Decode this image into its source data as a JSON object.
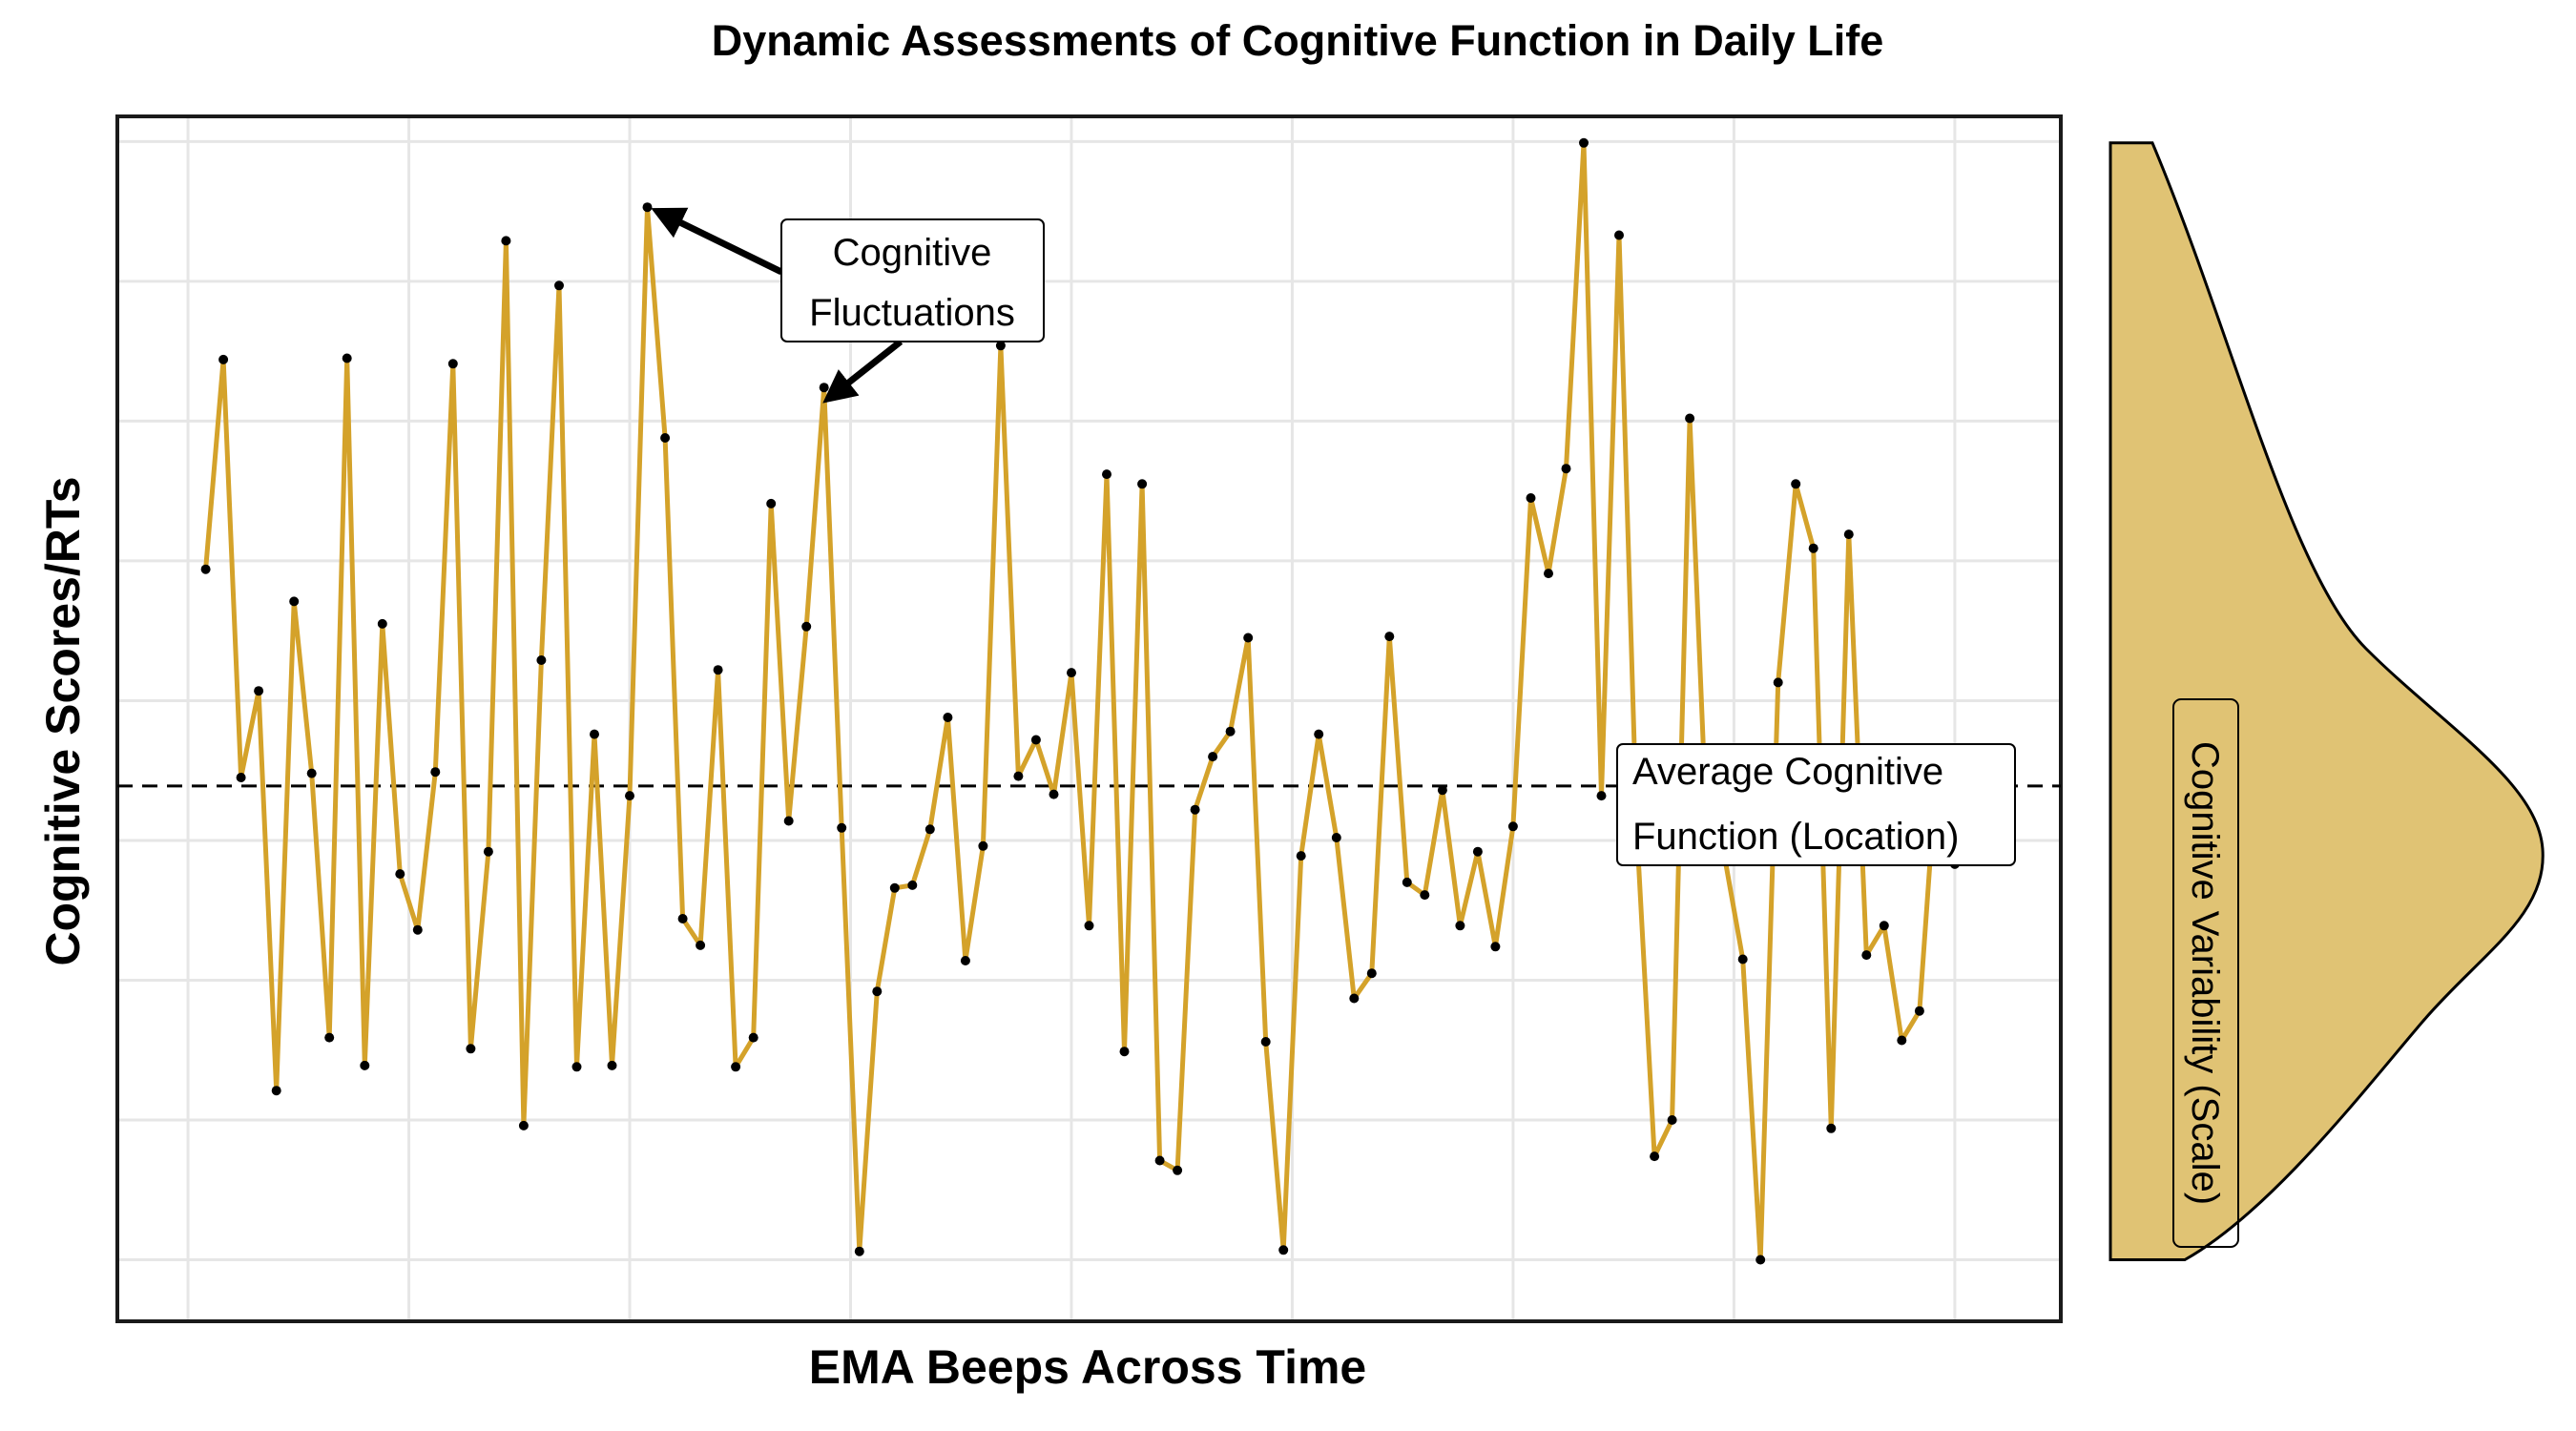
{
  "chart_data": {
    "type": "line",
    "title": "Dynamic Assessments of Cognitive Function in Daily Life",
    "xlabel": "EMA Beeps Across Time",
    "ylabel": "Cognitive Scores/RTs",
    "x_tick_labels_shown": false,
    "y_tick_labels_shown": false,
    "grid": true,
    "xlim": [
      -4,
      106
    ],
    "ylim": [
      -4.4,
      81.8
    ],
    "series": [
      {
        "color": "#D4A22A",
        "marker_color": "#000000",
        "x": [
          1,
          2,
          3,
          4,
          5,
          6,
          7,
          8,
          9,
          10,
          11,
          12,
          13,
          14,
          15,
          16,
          17,
          18,
          19,
          20,
          21,
          22,
          23,
          24,
          25,
          26,
          27,
          28,
          29,
          30,
          31,
          32,
          33,
          34,
          35,
          36,
          37,
          38,
          39,
          40,
          41,
          42,
          43,
          44,
          45,
          46,
          47,
          48,
          49,
          50,
          51,
          52,
          53,
          54,
          55,
          56,
          57,
          58,
          59,
          60,
          61,
          62,
          63,
          64,
          65,
          66,
          67,
          68,
          69,
          70,
          71,
          72,
          73,
          74,
          75,
          76,
          77,
          78,
          79,
          80,
          81,
          82,
          83,
          84,
          85,
          86,
          87,
          88,
          89,
          90,
          91,
          92,
          93,
          94,
          95,
          96,
          97,
          98,
          99,
          100
        ],
        "y": [
          49.4,
          64.4,
          34.5,
          40.7,
          12.1,
          47.1,
          34.8,
          15.9,
          64.5,
          13.9,
          45.5,
          27.6,
          23.6,
          34.9,
          64.1,
          15.1,
          29.2,
          72.9,
          9.6,
          42.9,
          69.7,
          13.8,
          37.6,
          13.9,
          33.2,
          75.3,
          58.8,
          24.4,
          22.5,
          42.2,
          13.8,
          15.9,
          54.1,
          31.4,
          45.3,
          62.4,
          30.9,
          0.6,
          19.2,
          26.6,
          26.8,
          30.8,
          38.8,
          21.4,
          29.6,
          65.4,
          34.6,
          37.2,
          33.3,
          42,
          23.9,
          56.2,
          14.9,
          55.5,
          7.1,
          6.4,
          32.2,
          36,
          37.8,
          44.5,
          15.6,
          0.7,
          28.9,
          37.6,
          30.2,
          18.7,
          20.5,
          44.6,
          27,
          26.1,
          33.6,
          23.9,
          29.2,
          22.4,
          31,
          54.5,
          49.1,
          56.6,
          79.9,
          33.2,
          73.3,
          30.7,
          7.4,
          10,
          60.2,
          29.6,
          28.6,
          21.5,
          0,
          41.3,
          55.5,
          50.9,
          9.4,
          51.9,
          21.8,
          23.9,
          15.7,
          17.8,
          35.7,
          28.3
        ]
      }
    ],
    "reference_line": {
      "style": "dashed",
      "y": 33.9,
      "label": "Average Cognitive Function (Location)"
    },
    "annotations": [
      {
        "text": "Cognitive Fluctuations",
        "points_to_x": [
          26,
          36
        ]
      }
    ],
    "side_density": {
      "label": "Cognitive Variability (Scale)",
      "fill": "#E0C374"
    }
  }
}
